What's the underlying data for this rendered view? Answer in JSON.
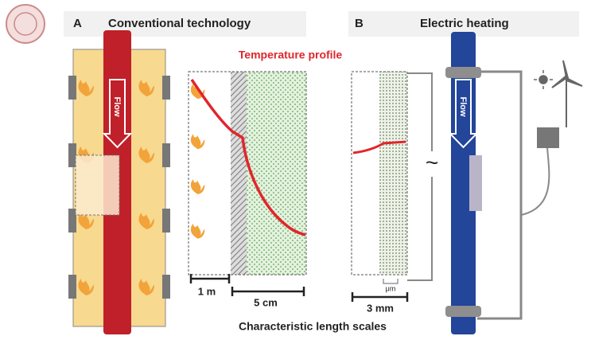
{
  "panel_a": {
    "letter": "A",
    "title": "Conventional technology",
    "flow_label": "Flow",
    "scale_1": "1 m",
    "scale_2": "5 cm"
  },
  "temperature_profile": "Temperature profile",
  "panel_b": {
    "letter": "B",
    "title": "Electric heating",
    "flow_label": "Flow",
    "scale_1": "3 mm",
    "scale_2": "μm",
    "ac_symbol": "~"
  },
  "footer": "Characteristic length scales"
}
